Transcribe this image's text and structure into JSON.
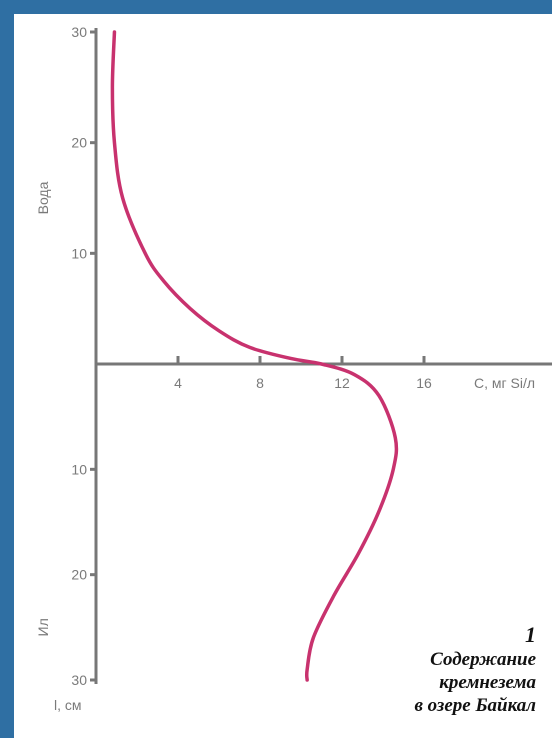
{
  "colors": {
    "frame": "#2f6fa3",
    "background": "#ffffff",
    "axis": "#777777",
    "curve": "#c8326e",
    "text": "#7a7a7a"
  },
  "chart_data": {
    "type": "line",
    "upper_axis": {
      "ylabel": "Вода",
      "ticks": [
        10,
        20,
        30
      ],
      "ylim": [
        0,
        30
      ]
    },
    "lower_axis": {
      "ylabel": "Ил",
      "ticks": [
        10,
        20,
        30
      ],
      "ylim": [
        0,
        30
      ],
      "unit_label": "l, см"
    },
    "x_axis": {
      "ticks": [
        4,
        8,
        12,
        16
      ],
      "xlabel": "C, мг Si/л",
      "xlim": [
        0,
        22
      ]
    },
    "series": [
      {
        "upper": [
          {
            "x": 0.9,
            "y": 30
          },
          {
            "x": 0.8,
            "y": 25
          },
          {
            "x": 0.9,
            "y": 20
          },
          {
            "x": 1.3,
            "y": 15
          },
          {
            "x": 2.4,
            "y": 10
          },
          {
            "x": 3.3,
            "y": 7.5
          },
          {
            "x": 4.6,
            "y": 5
          },
          {
            "x": 6.0,
            "y": 3
          },
          {
            "x": 7.5,
            "y": 1.5
          },
          {
            "x": 9.5,
            "y": 0.5
          },
          {
            "x": 11.0,
            "y": 0
          }
        ],
        "lower": [
          {
            "x": 11.0,
            "y": 0
          },
          {
            "x": 12.6,
            "y": 1
          },
          {
            "x": 13.8,
            "y": 3
          },
          {
            "x": 14.6,
            "y": 7
          },
          {
            "x": 14.5,
            "y": 10
          },
          {
            "x": 13.8,
            "y": 14
          },
          {
            "x": 12.8,
            "y": 18
          },
          {
            "x": 11.6,
            "y": 22
          },
          {
            "x": 10.6,
            "y": 26
          },
          {
            "x": 10.3,
            "y": 29
          },
          {
            "x": 10.3,
            "y": 30
          }
        ]
      }
    ]
  },
  "caption": {
    "number": "1",
    "lines": [
      "Содержание",
      "кремнезема",
      "в озере Байкал"
    ]
  }
}
